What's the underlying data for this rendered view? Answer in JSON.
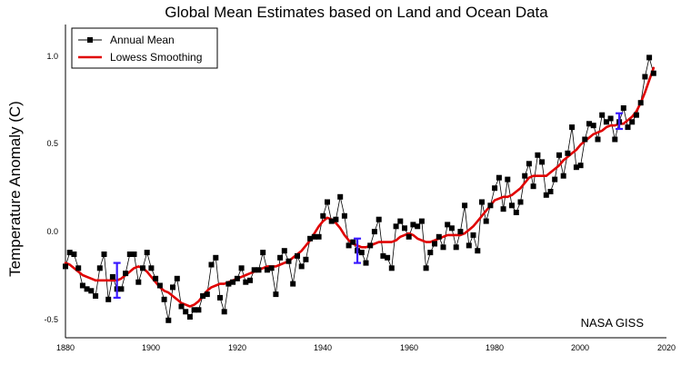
{
  "chart_data": {
    "type": "line",
    "title": "Global Mean Estimates based on Land and Ocean Data",
    "xlabel": "",
    "ylabel": "Temperature Anomaly (C)",
    "xlim": [
      1880,
      2020
    ],
    "ylim": [
      -0.6,
      1.2
    ],
    "xticks": [
      "1880",
      "1900",
      "1920",
      "1940",
      "1960",
      "1980",
      "2000",
      "2020"
    ],
    "yticks": [
      "-0.5",
      "0.0",
      "0.5",
      "1.0"
    ],
    "credit": "NASA GISS",
    "legend_position": "top-left",
    "x": [
      1880,
      1881,
      1882,
      1883,
      1884,
      1885,
      1886,
      1887,
      1888,
      1889,
      1890,
      1891,
      1892,
      1893,
      1894,
      1895,
      1896,
      1897,
      1898,
      1899,
      1900,
      1901,
      1902,
      1903,
      1904,
      1905,
      1906,
      1907,
      1908,
      1909,
      1910,
      1911,
      1912,
      1913,
      1914,
      1915,
      1916,
      1917,
      1918,
      1919,
      1920,
      1921,
      1922,
      1923,
      1924,
      1925,
      1926,
      1927,
      1928,
      1929,
      1930,
      1931,
      1932,
      1933,
      1934,
      1935,
      1936,
      1937,
      1938,
      1939,
      1940,
      1941,
      1942,
      1943,
      1944,
      1945,
      1946,
      1947,
      1948,
      1949,
      1950,
      1951,
      1952,
      1953,
      1954,
      1955,
      1956,
      1957,
      1958,
      1959,
      1960,
      1961,
      1962,
      1963,
      1964,
      1965,
      1966,
      1967,
      1968,
      1969,
      1970,
      1971,
      1972,
      1973,
      1974,
      1975,
      1976,
      1977,
      1978,
      1979,
      1980,
      1981,
      1982,
      1983,
      1984,
      1985,
      1986,
      1987,
      1988,
      1989,
      1990,
      1991,
      1992,
      1993,
      1994,
      1995,
      1996,
      1997,
      1998,
      1999,
      2000,
      2001,
      2002,
      2003,
      2004,
      2005,
      2006,
      2007,
      2008,
      2009,
      2010,
      2011,
      2012,
      2013,
      2014,
      2015,
      2016,
      2017
    ],
    "series": [
      {
        "name": "Annual Mean",
        "color": "#000000",
        "values": [
          -0.19,
          -0.11,
          -0.12,
          -0.2,
          -0.3,
          -0.32,
          -0.33,
          -0.36,
          -0.2,
          -0.12,
          -0.38,
          -0.25,
          -0.32,
          -0.32,
          -0.23,
          -0.12,
          -0.12,
          -0.28,
          -0.2,
          -0.11,
          -0.2,
          -0.26,
          -0.3,
          -0.38,
          -0.5,
          -0.31,
          -0.26,
          -0.42,
          -0.45,
          -0.48,
          -0.44,
          -0.44,
          -0.36,
          -0.35,
          -0.18,
          -0.14,
          -0.37,
          -0.45,
          -0.29,
          -0.28,
          -0.26,
          -0.2,
          -0.28,
          -0.27,
          -0.21,
          -0.21,
          -0.11,
          -0.21,
          -0.2,
          -0.35,
          -0.14,
          -0.1,
          -0.16,
          -0.29,
          -0.13,
          -0.19,
          -0.15,
          -0.03,
          -0.02,
          -0.02,
          0.1,
          0.18,
          0.07,
          0.08,
          0.21,
          0.1,
          -0.07,
          -0.05,
          -0.1,
          -0.11,
          -0.17,
          -0.07,
          0.01,
          0.08,
          -0.13,
          -0.14,
          -0.2,
          0.04,
          0.07,
          0.03,
          -0.02,
          0.05,
          0.04,
          0.07,
          -0.2,
          -0.11,
          -0.06,
          -0.02,
          -0.08,
          0.05,
          0.03,
          -0.08,
          0.01,
          0.16,
          -0.07,
          -0.01,
          -0.1,
          0.18,
          0.07,
          0.16,
          0.26,
          0.32,
          0.14,
          0.31,
          0.16,
          0.12,
          0.18,
          0.33,
          0.4,
          0.27,
          0.45,
          0.41,
          0.22,
          0.24,
          0.31,
          0.45,
          0.33,
          0.46,
          0.61,
          0.38,
          0.39,
          0.54,
          0.63,
          0.62,
          0.54,
          0.68,
          0.64,
          0.66,
          0.54,
          0.64,
          0.72,
          0.61,
          0.64,
          0.68,
          0.75,
          0.9,
          1.01,
          0.92
        ]
      },
      {
        "name": "Lowess Smoothing",
        "color": "#e00000",
        "values": [
          -0.17,
          -0.18,
          -0.2,
          -0.22,
          -0.24,
          -0.25,
          -0.26,
          -0.27,
          -0.27,
          -0.27,
          -0.27,
          -0.27,
          -0.27,
          -0.26,
          -0.24,
          -0.22,
          -0.2,
          -0.19,
          -0.2,
          -0.22,
          -0.25,
          -0.28,
          -0.31,
          -0.33,
          -0.34,
          -0.36,
          -0.38,
          -0.4,
          -0.41,
          -0.42,
          -0.41,
          -0.39,
          -0.36,
          -0.33,
          -0.31,
          -0.3,
          -0.29,
          -0.29,
          -0.28,
          -0.27,
          -0.26,
          -0.25,
          -0.24,
          -0.23,
          -0.22,
          -0.21,
          -0.2,
          -0.19,
          -0.19,
          -0.19,
          -0.18,
          -0.17,
          -0.16,
          -0.14,
          -0.12,
          -0.1,
          -0.07,
          -0.04,
          0.0,
          0.04,
          0.07,
          0.09,
          0.08,
          0.06,
          0.03,
          -0.01,
          -0.04,
          -0.06,
          -0.07,
          -0.08,
          -0.08,
          -0.07,
          -0.06,
          -0.05,
          -0.05,
          -0.05,
          -0.05,
          -0.04,
          -0.02,
          -0.01,
          0.0,
          -0.01,
          -0.03,
          -0.04,
          -0.05,
          -0.05,
          -0.04,
          -0.03,
          -0.02,
          -0.01,
          -0.01,
          -0.01,
          -0.01,
          0.0,
          0.02,
          0.04,
          0.07,
          0.1,
          0.13,
          0.16,
          0.19,
          0.2,
          0.21,
          0.21,
          0.22,
          0.24,
          0.26,
          0.29,
          0.32,
          0.33,
          0.33,
          0.33,
          0.33,
          0.35,
          0.37,
          0.39,
          0.42,
          0.44,
          0.46,
          0.48,
          0.51,
          0.53,
          0.55,
          0.57,
          0.58,
          0.59,
          0.61,
          0.62,
          0.62,
          0.63,
          0.63,
          0.65,
          0.67,
          0.7,
          0.75,
          0.81,
          0.88,
          0.95
        ]
      }
    ],
    "uncertainty_bars": [
      {
        "x": 1892,
        "low": -0.37,
        "high": -0.17
      },
      {
        "x": 1948,
        "low": -0.17,
        "high": -0.03
      },
      {
        "x": 2009,
        "low": 0.6,
        "high": 0.69
      }
    ],
    "uncertainty_color": "#3a1aff"
  }
}
